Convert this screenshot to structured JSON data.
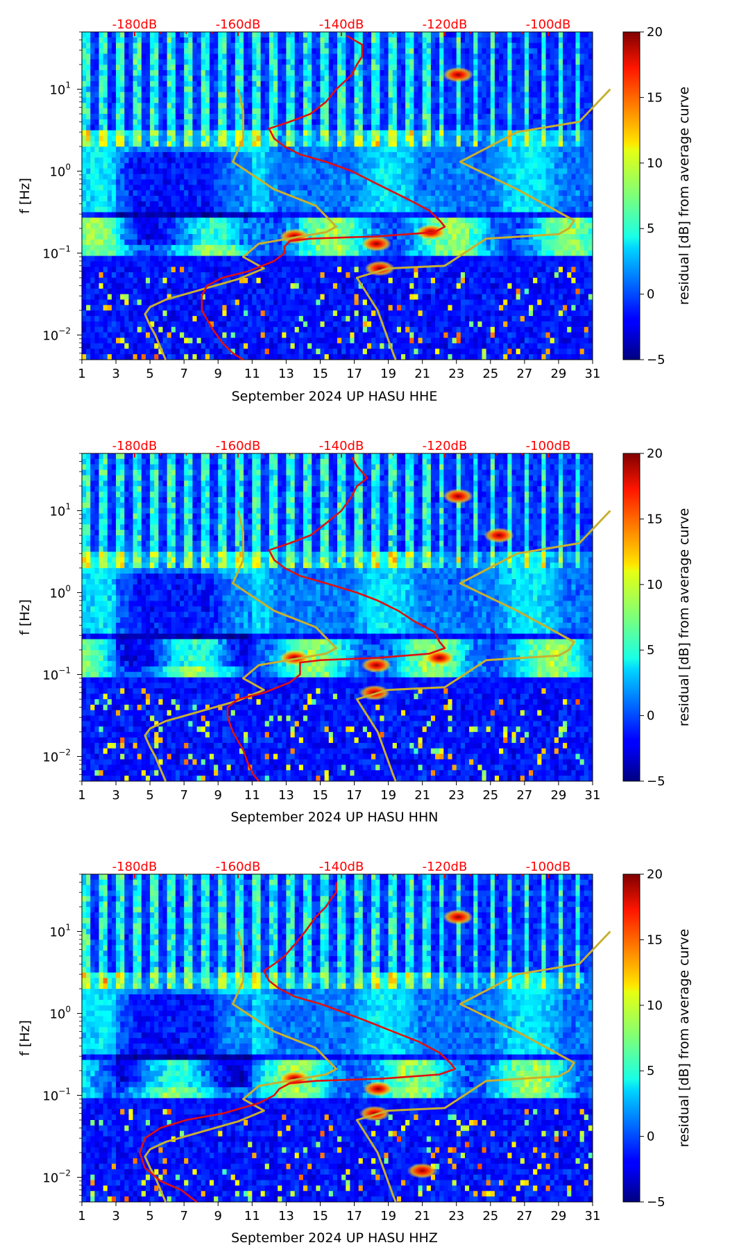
{
  "chart_data": [
    {
      "type": "heatmap",
      "channel": "HHE",
      "xlabel": "September 2024 UP HASU  HHE",
      "ylabel": "f [Hz]",
      "x_ticks": [
        "1",
        "3",
        "5",
        "7",
        "9",
        "11",
        "13",
        "15",
        "17",
        "19",
        "21",
        "23",
        "25",
        "27",
        "29",
        "31"
      ],
      "xlim": [
        1,
        31
      ],
      "ylim_hz": [
        0.005,
        50
      ],
      "y_ticks": [
        {
          "exp": "1"
        },
        {
          "exp": "0"
        },
        {
          "exp": "−1"
        },
        {
          "exp": "−2"
        }
      ],
      "top_axis_labels": [
        "-180dB",
        "-160dB",
        "-140dB",
        "-120dB",
        "-100dB"
      ],
      "top_axis_db": [
        -180,
        -160,
        -140,
        -120,
        -100
      ],
      "colorbar": {
        "label": "residual [dB] from average curve",
        "ticks": [
          "20",
          "15",
          "10",
          "5",
          "0",
          "−5"
        ],
        "range": [
          -5,
          20
        ]
      },
      "red_curve": {
        "name": "average PSD (dB)",
        "points": [
          [
            -139,
            45
          ],
          [
            -136,
            35
          ],
          [
            -136,
            25
          ],
          [
            -137,
            20
          ],
          [
            -138,
            15
          ],
          [
            -141,
            10
          ],
          [
            -143,
            7
          ],
          [
            -146,
            5
          ],
          [
            -150,
            4
          ],
          [
            -154,
            3.3
          ],
          [
            -153,
            2.5
          ],
          [
            -151,
            2
          ],
          [
            -148,
            1.6
          ],
          [
            -143,
            1.3
          ],
          [
            -138,
            1
          ],
          [
            -135,
            0.8
          ],
          [
            -131,
            0.6
          ],
          [
            -127,
            0.45
          ],
          [
            -123,
            0.33
          ],
          [
            -121,
            0.25
          ],
          [
            -120,
            0.21
          ],
          [
            -122,
            0.18
          ],
          [
            -133,
            0.16
          ],
          [
            -146,
            0.15
          ],
          [
            -150,
            0.14
          ],
          [
            -151,
            0.12
          ],
          [
            -151,
            0.1
          ],
          [
            -153,
            0.08
          ],
          [
            -158,
            0.06
          ],
          [
            -163,
            0.05
          ],
          [
            -166,
            0.04
          ],
          [
            -167,
            0.03
          ],
          [
            -167,
            0.02
          ],
          [
            -165,
            0.012
          ],
          [
            -163,
            0.008
          ],
          [
            -161,
            0.006
          ],
          [
            -159,
            0.005
          ]
        ]
      },
      "yellow_model": {
        "name": "noise model (dB)",
        "low": [
          [
            -160,
            10
          ],
          [
            -159,
            5.5
          ],
          [
            -159,
            2.5
          ],
          [
            -161,
            1.3
          ],
          [
            -153,
            0.6
          ],
          [
            -145,
            0.38
          ],
          [
            -141,
            0.21
          ],
          [
            -143,
            0.18
          ],
          [
            -156,
            0.13
          ],
          [
            -159,
            0.09
          ],
          [
            -155,
            0.065
          ],
          [
            -160,
            0.048
          ],
          [
            -167,
            0.036
          ],
          [
            -174,
            0.027
          ],
          [
            -177,
            0.022
          ],
          [
            -178,
            0.018
          ],
          [
            -177,
            0.013
          ],
          [
            -176,
            0.01
          ],
          [
            -175,
            0.007
          ],
          [
            -174,
            0.005
          ]
        ],
        "high": [
          [
            -88,
            10
          ],
          [
            -94,
            4
          ],
          [
            -106,
            3
          ],
          [
            -117,
            1.3
          ],
          [
            -106,
            0.6
          ],
          [
            -95,
            0.25
          ],
          [
            -96,
            0.2
          ],
          [
            -98,
            0.17
          ],
          [
            -112,
            0.15
          ],
          [
            -120,
            0.07
          ],
          [
            -131,
            0.065
          ],
          [
            -137,
            0.05
          ],
          [
            -133,
            0.02
          ],
          [
            -130,
            0.006
          ],
          [
            -129.5,
            0.005
          ]
        ]
      },
      "hotspots": [
        {
          "day": 13.5,
          "f": 0.16,
          "v": 19
        },
        {
          "day": 18.3,
          "f": 0.13,
          "v": 20
        },
        {
          "day": 18.5,
          "f": 0.065,
          "v": 17
        },
        {
          "day": 21.5,
          "f": 0.18,
          "v": 15
        },
        {
          "day": 23.1,
          "f": 15,
          "v": 17
        }
      ]
    },
    {
      "type": "heatmap",
      "channel": "HHN",
      "xlabel": "September 2024 UP HASU  HHN",
      "ylabel": "f [Hz]",
      "x_ticks": [
        "1",
        "3",
        "5",
        "7",
        "9",
        "11",
        "13",
        "15",
        "17",
        "19",
        "21",
        "23",
        "25",
        "27",
        "29",
        "31"
      ],
      "xlim": [
        1,
        31
      ],
      "ylim_hz": [
        0.005,
        50
      ],
      "y_ticks": [
        {
          "exp": "1"
        },
        {
          "exp": "0"
        },
        {
          "exp": "−1"
        },
        {
          "exp": "−2"
        }
      ],
      "top_axis_labels": [
        "-180dB",
        "-160dB",
        "-140dB",
        "-120dB",
        "-100dB"
      ],
      "top_axis_db": [
        -180,
        -160,
        -140,
        -120,
        -100
      ],
      "colorbar": {
        "label": "residual [dB] from average curve",
        "ticks": [
          "20",
          "15",
          "10",
          "5",
          "0",
          "−5"
        ],
        "range": [
          -5,
          20
        ]
      },
      "red_curve": {
        "name": "average PSD (dB)",
        "points": [
          [
            -138,
            45
          ],
          [
            -137,
            35
          ],
          [
            -135,
            25
          ],
          [
            -137,
            20
          ],
          [
            -138,
            15
          ],
          [
            -140,
            10
          ],
          [
            -143,
            7
          ],
          [
            -146,
            5
          ],
          [
            -150,
            4
          ],
          [
            -154,
            3.3
          ],
          [
            -153,
            2.5
          ],
          [
            -151,
            2
          ],
          [
            -148,
            1.6
          ],
          [
            -143,
            1.3
          ],
          [
            -137,
            1
          ],
          [
            -133,
            0.8
          ],
          [
            -129,
            0.6
          ],
          [
            -126,
            0.45
          ],
          [
            -122,
            0.33
          ],
          [
            -121,
            0.25
          ],
          [
            -120,
            0.21
          ],
          [
            -123,
            0.18
          ],
          [
            -133,
            0.16
          ],
          [
            -144,
            0.15
          ],
          [
            -148,
            0.14
          ],
          [
            -148,
            0.12
          ],
          [
            -148,
            0.1
          ],
          [
            -150,
            0.08
          ],
          [
            -155,
            0.06
          ],
          [
            -160,
            0.05
          ],
          [
            -162,
            0.04
          ],
          [
            -162,
            0.03
          ],
          [
            -161,
            0.02
          ],
          [
            -159,
            0.012
          ],
          [
            -158,
            0.008
          ],
          [
            -157,
            0.006
          ],
          [
            -156,
            0.005
          ]
        ]
      },
      "yellow_model": {
        "name": "noise model (dB)",
        "low": [
          [
            -160,
            10
          ],
          [
            -159,
            5.5
          ],
          [
            -159,
            2.5
          ],
          [
            -161,
            1.3
          ],
          [
            -153,
            0.6
          ],
          [
            -145,
            0.38
          ],
          [
            -141,
            0.21
          ],
          [
            -143,
            0.18
          ],
          [
            -156,
            0.13
          ],
          [
            -159,
            0.09
          ],
          [
            -155,
            0.065
          ],
          [
            -160,
            0.048
          ],
          [
            -167,
            0.036
          ],
          [
            -174,
            0.027
          ],
          [
            -177,
            0.022
          ],
          [
            -178,
            0.018
          ],
          [
            -177,
            0.013
          ],
          [
            -176,
            0.01
          ],
          [
            -175,
            0.007
          ],
          [
            -174,
            0.005
          ]
        ],
        "high": [
          [
            -88,
            10
          ],
          [
            -94,
            4
          ],
          [
            -106,
            3
          ],
          [
            -117,
            1.3
          ],
          [
            -106,
            0.6
          ],
          [
            -95,
            0.25
          ],
          [
            -96,
            0.2
          ],
          [
            -98,
            0.17
          ],
          [
            -112,
            0.15
          ],
          [
            -120,
            0.07
          ],
          [
            -131,
            0.065
          ],
          [
            -137,
            0.05
          ],
          [
            -133,
            0.02
          ],
          [
            -130,
            0.006
          ],
          [
            -129.5,
            0.005
          ]
        ]
      },
      "hotspots": [
        {
          "day": 13.5,
          "f": 0.16,
          "v": 18
        },
        {
          "day": 18.3,
          "f": 0.13,
          "v": 20
        },
        {
          "day": 18.2,
          "f": 0.06,
          "v": 15
        },
        {
          "day": 22,
          "f": 0.16,
          "v": 16
        },
        {
          "day": 23.1,
          "f": 15,
          "v": 17
        },
        {
          "day": 25.5,
          "f": 5,
          "v": 15
        }
      ]
    },
    {
      "type": "heatmap",
      "channel": "HHZ",
      "xlabel": "September 2024 UP HASU  HHZ",
      "ylabel": "f [Hz]",
      "x_ticks": [
        "1",
        "3",
        "5",
        "7",
        "9",
        "11",
        "13",
        "15",
        "17",
        "19",
        "21",
        "23",
        "25",
        "27",
        "29",
        "31"
      ],
      "xlim": [
        1,
        31
      ],
      "ylim_hz": [
        0.005,
        50
      ],
      "y_ticks": [
        {
          "exp": "1"
        },
        {
          "exp": "0"
        },
        {
          "exp": "−1"
        },
        {
          "exp": "−2"
        }
      ],
      "top_axis_labels": [
        "-180dB",
        "-160dB",
        "-140dB",
        "-120dB",
        "-100dB"
      ],
      "top_axis_db": [
        -180,
        -160,
        -140,
        -120,
        -100
      ],
      "colorbar": {
        "label": "residual [dB] from average curve",
        "ticks": [
          "20",
          "15",
          "10",
          "5",
          "0",
          "−5"
        ],
        "range": [
          -5,
          20
        ]
      },
      "red_curve": {
        "name": "average PSD (dB)",
        "points": [
          [
            -141,
            40
          ],
          [
            -141,
            30
          ],
          [
            -142,
            25
          ],
          [
            -143,
            20
          ],
          [
            -145,
            15
          ],
          [
            -147,
            10
          ],
          [
            -149,
            7
          ],
          [
            -151,
            5
          ],
          [
            -153,
            4
          ],
          [
            -155,
            3.3
          ],
          [
            -154,
            2.5
          ],
          [
            -152,
            2
          ],
          [
            -149,
            1.6
          ],
          [
            -144,
            1.3
          ],
          [
            -139,
            1
          ],
          [
            -135,
            0.8
          ],
          [
            -130,
            0.6
          ],
          [
            -125,
            0.45
          ],
          [
            -121,
            0.33
          ],
          [
            -119,
            0.25
          ],
          [
            -118,
            0.21
          ],
          [
            -121,
            0.18
          ],
          [
            -132,
            0.16
          ],
          [
            -145,
            0.15
          ],
          [
            -150,
            0.14
          ],
          [
            -152,
            0.12
          ],
          [
            -153,
            0.1
          ],
          [
            -156,
            0.08
          ],
          [
            -163,
            0.06
          ],
          [
            -170,
            0.05
          ],
          [
            -175,
            0.04
          ],
          [
            -178,
            0.03
          ],
          [
            -179,
            0.02
          ],
          [
            -178,
            0.013
          ],
          [
            -175,
            0.009
          ],
          [
            -171,
            0.007
          ],
          [
            -168,
            0.005
          ]
        ]
      },
      "yellow_model": {
        "name": "noise model (dB)",
        "low": [
          [
            -160,
            10
          ],
          [
            -159,
            5.5
          ],
          [
            -159,
            2.5
          ],
          [
            -161,
            1.3
          ],
          [
            -153,
            0.6
          ],
          [
            -145,
            0.38
          ],
          [
            -141,
            0.21
          ],
          [
            -143,
            0.18
          ],
          [
            -156,
            0.13
          ],
          [
            -159,
            0.09
          ],
          [
            -155,
            0.065
          ],
          [
            -160,
            0.048
          ],
          [
            -167,
            0.036
          ],
          [
            -174,
            0.027
          ],
          [
            -177,
            0.022
          ],
          [
            -178,
            0.018
          ],
          [
            -177,
            0.013
          ],
          [
            -176,
            0.01
          ],
          [
            -175,
            0.007
          ],
          [
            -174,
            0.005
          ]
        ],
        "high": [
          [
            -88,
            10
          ],
          [
            -94,
            4
          ],
          [
            -106,
            3
          ],
          [
            -117,
            1.3
          ],
          [
            -106,
            0.6
          ],
          [
            -95,
            0.25
          ],
          [
            -96,
            0.2
          ],
          [
            -98,
            0.17
          ],
          [
            -112,
            0.15
          ],
          [
            -120,
            0.07
          ],
          [
            -131,
            0.065
          ],
          [
            -137,
            0.05
          ],
          [
            -133,
            0.02
          ],
          [
            -130,
            0.006
          ],
          [
            -129.5,
            0.005
          ]
        ]
      },
      "hotspots": [
        {
          "day": 13.5,
          "f": 0.16,
          "v": 18
        },
        {
          "day": 18.4,
          "f": 0.12,
          "v": 20
        },
        {
          "day": 18.2,
          "f": 0.06,
          "v": 15
        },
        {
          "day": 21,
          "f": 0.012,
          "v": 17
        },
        {
          "day": 23.1,
          "f": 15,
          "v": 17
        }
      ]
    }
  ]
}
